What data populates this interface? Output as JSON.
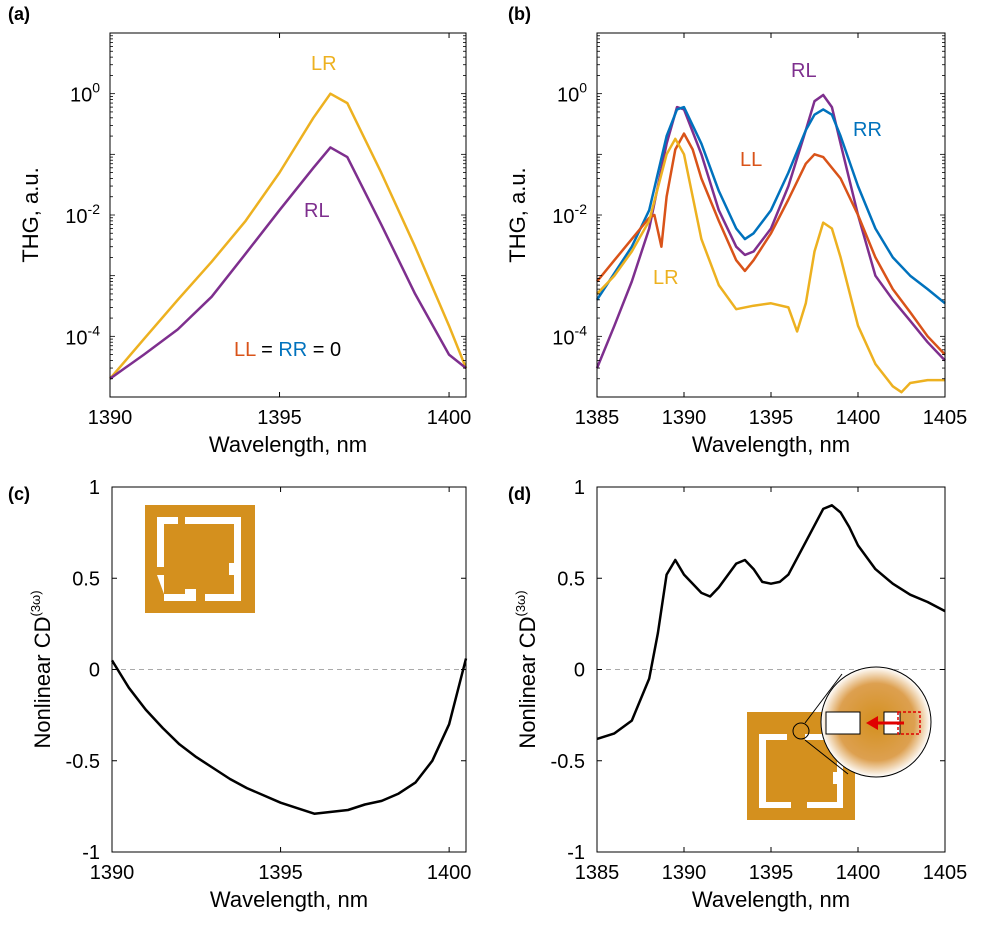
{
  "colors": {
    "LR": "#EDB120",
    "RL": "#7E2F8E",
    "LL": "#D95319",
    "RR": "#0072BD",
    "line": "#000000",
    "zero_line": "#aaaaaa",
    "inset_gold": "#D4901E",
    "inset_white": "#ffffff",
    "arrow": "#e00000"
  },
  "chart_data": [
    {
      "panel": "(a)",
      "type": "line",
      "xlabel": "Wavelength, nm",
      "ylabel": "THG, a.u.",
      "yscale": "log",
      "xlim": [
        1390,
        1400.5
      ],
      "ylim": [
        1e-05,
        10
      ],
      "xticks": [
        1390,
        1395,
        1400
      ],
      "yticks": [
        {
          "value": 0.0001,
          "base": "10",
          "exp": "-4"
        },
        {
          "value": 0.01,
          "base": "10",
          "exp": "-2"
        },
        {
          "value": 1,
          "base": "10",
          "exp": "0"
        }
      ],
      "annotation": {
        "LL": "LL",
        "eq1": " = ",
        "RR": "RR",
        "eq2": " = 0"
      },
      "series": [
        {
          "name": "LR",
          "color_key": "LR",
          "x": [
            1390,
            1391,
            1392,
            1393,
            1394,
            1395,
            1396,
            1396.5,
            1397,
            1398,
            1399,
            1400,
            1400.5
          ],
          "values": [
            2e-05,
            9e-05,
            0.0004,
            0.0017,
            0.008,
            0.05,
            0.4,
            1.0,
            0.7,
            0.05,
            0.003,
            0.00015,
            3e-05
          ]
        },
        {
          "name": "RL",
          "color_key": "RL",
          "x": [
            1390,
            1391,
            1392,
            1393,
            1394,
            1395,
            1396,
            1396.5,
            1397,
            1398,
            1399,
            1400,
            1400.5
          ],
          "values": [
            2e-05,
            5e-05,
            0.00013,
            0.00045,
            0.0023,
            0.012,
            0.06,
            0.13,
            0.09,
            0.007,
            0.0005,
            5e-05,
            3e-05
          ]
        }
      ]
    },
    {
      "panel": "(b)",
      "type": "line",
      "xlabel": "Wavelength, nm",
      "ylabel": "THG, a.u.",
      "yscale": "log",
      "xlim": [
        1385,
        1405
      ],
      "ylim": [
        1e-05,
        10
      ],
      "xticks": [
        1385,
        1390,
        1395,
        1400,
        1405
      ],
      "yticks": [
        {
          "value": 0.0001,
          "base": "10",
          "exp": "-4"
        },
        {
          "value": 0.01,
          "base": "10",
          "exp": "-2"
        },
        {
          "value": 1,
          "base": "10",
          "exp": "0"
        }
      ],
      "series": [
        {
          "name": "RL",
          "color_key": "RL",
          "x": [
            1385,
            1386,
            1387,
            1388,
            1389,
            1389.6,
            1390,
            1391,
            1392,
            1393,
            1393.5,
            1394,
            1395,
            1396,
            1397,
            1397.5,
            1398,
            1398.5,
            1399,
            1400,
            1401,
            1402,
            1403,
            1404,
            1405
          ],
          "values": [
            3e-05,
            0.00015,
            0.0008,
            0.006,
            0.15,
            0.6,
            0.55,
            0.1,
            0.012,
            0.003,
            0.0022,
            0.0025,
            0.006,
            0.03,
            0.25,
            0.75,
            0.95,
            0.6,
            0.15,
            0.01,
            0.001,
            0.0004,
            0.00018,
            8e-05,
            4e-05
          ]
        },
        {
          "name": "RR",
          "color_key": "RR",
          "x": [
            1385,
            1386,
            1387,
            1388,
            1389,
            1389.6,
            1390,
            1391,
            1392,
            1393,
            1393.5,
            1394,
            1395,
            1396,
            1397,
            1397.5,
            1398,
            1398.5,
            1399,
            1400,
            1401,
            1402,
            1403,
            1404,
            1405
          ],
          "values": [
            0.0004,
            0.0011,
            0.003,
            0.012,
            0.2,
            0.55,
            0.6,
            0.15,
            0.025,
            0.006,
            0.004,
            0.005,
            0.012,
            0.05,
            0.25,
            0.45,
            0.55,
            0.45,
            0.2,
            0.03,
            0.006,
            0.002,
            0.001,
            0.0006,
            0.00035
          ]
        },
        {
          "name": "LL",
          "color_key": "LL",
          "x": [
            1385,
            1386,
            1387,
            1388,
            1388.3,
            1388.7,
            1389,
            1389.5,
            1390,
            1390.5,
            1391,
            1392,
            1393,
            1393.5,
            1394,
            1395,
            1396,
            1397,
            1397.5,
            1398,
            1399,
            1400,
            1401,
            1402,
            1403,
            1404,
            1405
          ],
          "values": [
            0.0008,
            0.0018,
            0.004,
            0.009,
            0.01,
            0.003,
            0.02,
            0.12,
            0.22,
            0.12,
            0.04,
            0.008,
            0.0018,
            0.0012,
            0.0018,
            0.005,
            0.018,
            0.07,
            0.1,
            0.09,
            0.04,
            0.01,
            0.002,
            0.0006,
            0.00025,
            0.0001,
            5e-05
          ]
        },
        {
          "name": "LR",
          "color_key": "LR",
          "x": [
            1385,
            1386,
            1387,
            1388,
            1389,
            1389.5,
            1390,
            1390.5,
            1391,
            1392,
            1393,
            1394,
            1395,
            1396,
            1396.5,
            1397,
            1397.5,
            1398,
            1398.5,
            1399,
            1400,
            1401,
            1402,
            1402.5,
            1403,
            1404,
            1405
          ],
          "values": [
            0.0005,
            0.001,
            0.0025,
            0.008,
            0.1,
            0.18,
            0.1,
            0.02,
            0.004,
            0.0007,
            0.00028,
            0.00032,
            0.00035,
            0.0003,
            0.00012,
            0.00035,
            0.0025,
            0.0075,
            0.006,
            0.002,
            0.00015,
            3.5e-05,
            1.5e-05,
            1.2e-05,
            1.7e-05,
            1.9e-05,
            1.9e-05
          ]
        }
      ]
    },
    {
      "panel": "(c)",
      "type": "line",
      "xlabel": "Wavelength, nm",
      "ylabel_main": "Nonlinear CD",
      "ylabel_sup": "(3ω)",
      "yscale": "linear",
      "xlim": [
        1390,
        1400.5
      ],
      "ylim": [
        -1,
        1
      ],
      "xticks": [
        1390,
        1395,
        1400
      ],
      "yticks": [
        -1,
        -0.5,
        0,
        0.5,
        1
      ],
      "ytick_labels": [
        "-1",
        "-0.5",
        "0",
        "0.5",
        "1"
      ],
      "series": [
        {
          "x": [
            1390,
            1390.5,
            1391,
            1391.5,
            1392,
            1392.5,
            1393,
            1393.5,
            1394,
            1394.5,
            1395,
            1395.5,
            1396,
            1396.5,
            1397,
            1397.5,
            1398,
            1398.5,
            1399,
            1399.5,
            1400,
            1400.5
          ],
          "values": [
            0.05,
            -0.1,
            -0.22,
            -0.32,
            -0.41,
            -0.48,
            -0.54,
            -0.6,
            -0.65,
            -0.69,
            -0.73,
            -0.76,
            -0.79,
            -0.78,
            -0.77,
            -0.74,
            -0.72,
            -0.68,
            -0.62,
            -0.5,
            -0.3,
            0.06
          ]
        }
      ]
    },
    {
      "panel": "(d)",
      "type": "line",
      "xlabel": "Wavelength, nm",
      "ylabel_main": "Nonlinear CD",
      "ylabel_sup": "(3ω)",
      "yscale": "linear",
      "xlim": [
        1385,
        1405
      ],
      "ylim": [
        -1,
        1
      ],
      "xticks": [
        1385,
        1390,
        1395,
        1400,
        1405
      ],
      "yticks": [
        -1,
        -0.5,
        0,
        0.5,
        1
      ],
      "ytick_labels": [
        "-1",
        "-0.5",
        "0",
        "0.5",
        "1"
      ],
      "series": [
        {
          "x": [
            1385,
            1386,
            1387,
            1388,
            1388.5,
            1389,
            1389.5,
            1390,
            1391,
            1391.5,
            1392,
            1393,
            1393.5,
            1394,
            1394.5,
            1395,
            1395.5,
            1396,
            1397,
            1398,
            1398.5,
            1399,
            1399.5,
            1400,
            1401,
            1402,
            1403,
            1404,
            1405
          ],
          "values": [
            -0.38,
            -0.35,
            -0.28,
            -0.05,
            0.2,
            0.52,
            0.6,
            0.52,
            0.42,
            0.4,
            0.45,
            0.58,
            0.6,
            0.55,
            0.48,
            0.47,
            0.48,
            0.52,
            0.7,
            0.88,
            0.9,
            0.86,
            0.78,
            0.68,
            0.55,
            0.47,
            0.41,
            0.37,
            0.32
          ]
        }
      ]
    }
  ]
}
